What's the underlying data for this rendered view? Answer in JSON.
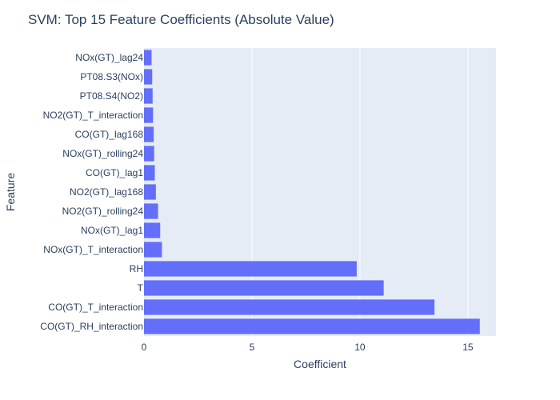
{
  "chart_data": {
    "type": "bar",
    "orientation": "horizontal",
    "title": "SVM: Top 15 Feature Coefficients (Absolute Value)",
    "xlabel": "Coefficient",
    "ylabel": "Feature",
    "xlim": [
      0,
      16.3
    ],
    "x_ticks": [
      0,
      5,
      10,
      15
    ],
    "grid": true,
    "bar_color": "#636efa",
    "plot_bg": "#e5ecf6",
    "categories": [
      "NOx(GT)_lag24",
      "PT08.S3(NOx)",
      "PT08.S4(NO2)",
      "NO2(GT)_T_interaction",
      "CO(GT)_lag168",
      "NOx(GT)_rolling24",
      "CO(GT)_lag1",
      "NO2(GT)_lag168",
      "NO2(GT)_rolling24",
      "NOx(GT)_lag1",
      "NOx(GT)_T_interaction",
      "RH",
      "T",
      "CO(GT)_T_interaction",
      "CO(GT)_RH_interaction"
    ],
    "values": [
      0.35,
      0.38,
      0.4,
      0.42,
      0.45,
      0.47,
      0.5,
      0.55,
      0.65,
      0.75,
      0.83,
      9.85,
      11.1,
      13.45,
      15.55
    ]
  }
}
